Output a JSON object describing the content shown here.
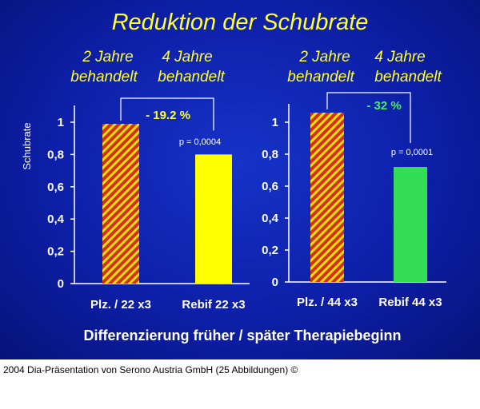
{
  "slide_title": "Reduktion der Schubrate",
  "bottom_text": "Differenzierung früher / später Therapiebeginn",
  "caption": "2004 Dia-Präsentation von Serono Austria GmbH (25 Abbildungen) ©",
  "colors": {
    "background": "#0d1fa8",
    "title_text": "#ffff33",
    "placebo_hatch_red": "#d2301a",
    "placebo_hatch_yellow": "#f2e000",
    "rebif22_bar": "#ffff00",
    "rebif44_bar": "#33dd55",
    "reduction_left": "#ffff33",
    "reduction_right": "#44ee66"
  },
  "chart_data": [
    {
      "type": "bar",
      "ylabel": "Schubrate",
      "ylim": [
        0,
        1.1
      ],
      "yticks": [
        "0",
        "0,2",
        "0,4",
        "0,6",
        "0,8",
        "1"
      ],
      "column_headers": [
        {
          "line1": "2 Jahre",
          "line2": "behandelt"
        },
        {
          "line1": "4 Jahre",
          "line2": "behandelt"
        }
      ],
      "categories": [
        "Plz. / 22 x3",
        "Rebif 22 x3"
      ],
      "values": [
        0.99,
        0.8
      ],
      "bar_styles": [
        "hatched",
        "solid"
      ],
      "bar_colors": [
        "#d2301a",
        "#ffff00"
      ],
      "reduction_label": "- 19.2 %",
      "p_value": "p = 0,0004"
    },
    {
      "type": "bar",
      "ylabel": "",
      "ylim": [
        0,
        1.1
      ],
      "yticks": [
        "0",
        "0,2",
        "0,4",
        "0,6",
        "0,8",
        "1"
      ],
      "column_headers": [
        {
          "line1": "2 Jahre",
          "line2": "behandelt"
        },
        {
          "line1": "4 Jahre",
          "line2": "behandelt"
        }
      ],
      "categories": [
        "Plz. / 44 x3",
        "Rebif 44 x3"
      ],
      "values": [
        1.06,
        0.72
      ],
      "bar_styles": [
        "hatched",
        "solid"
      ],
      "bar_colors": [
        "#d2301a",
        "#33dd55"
      ],
      "reduction_label": "- 32 %",
      "p_value": "p = 0,0001"
    }
  ]
}
